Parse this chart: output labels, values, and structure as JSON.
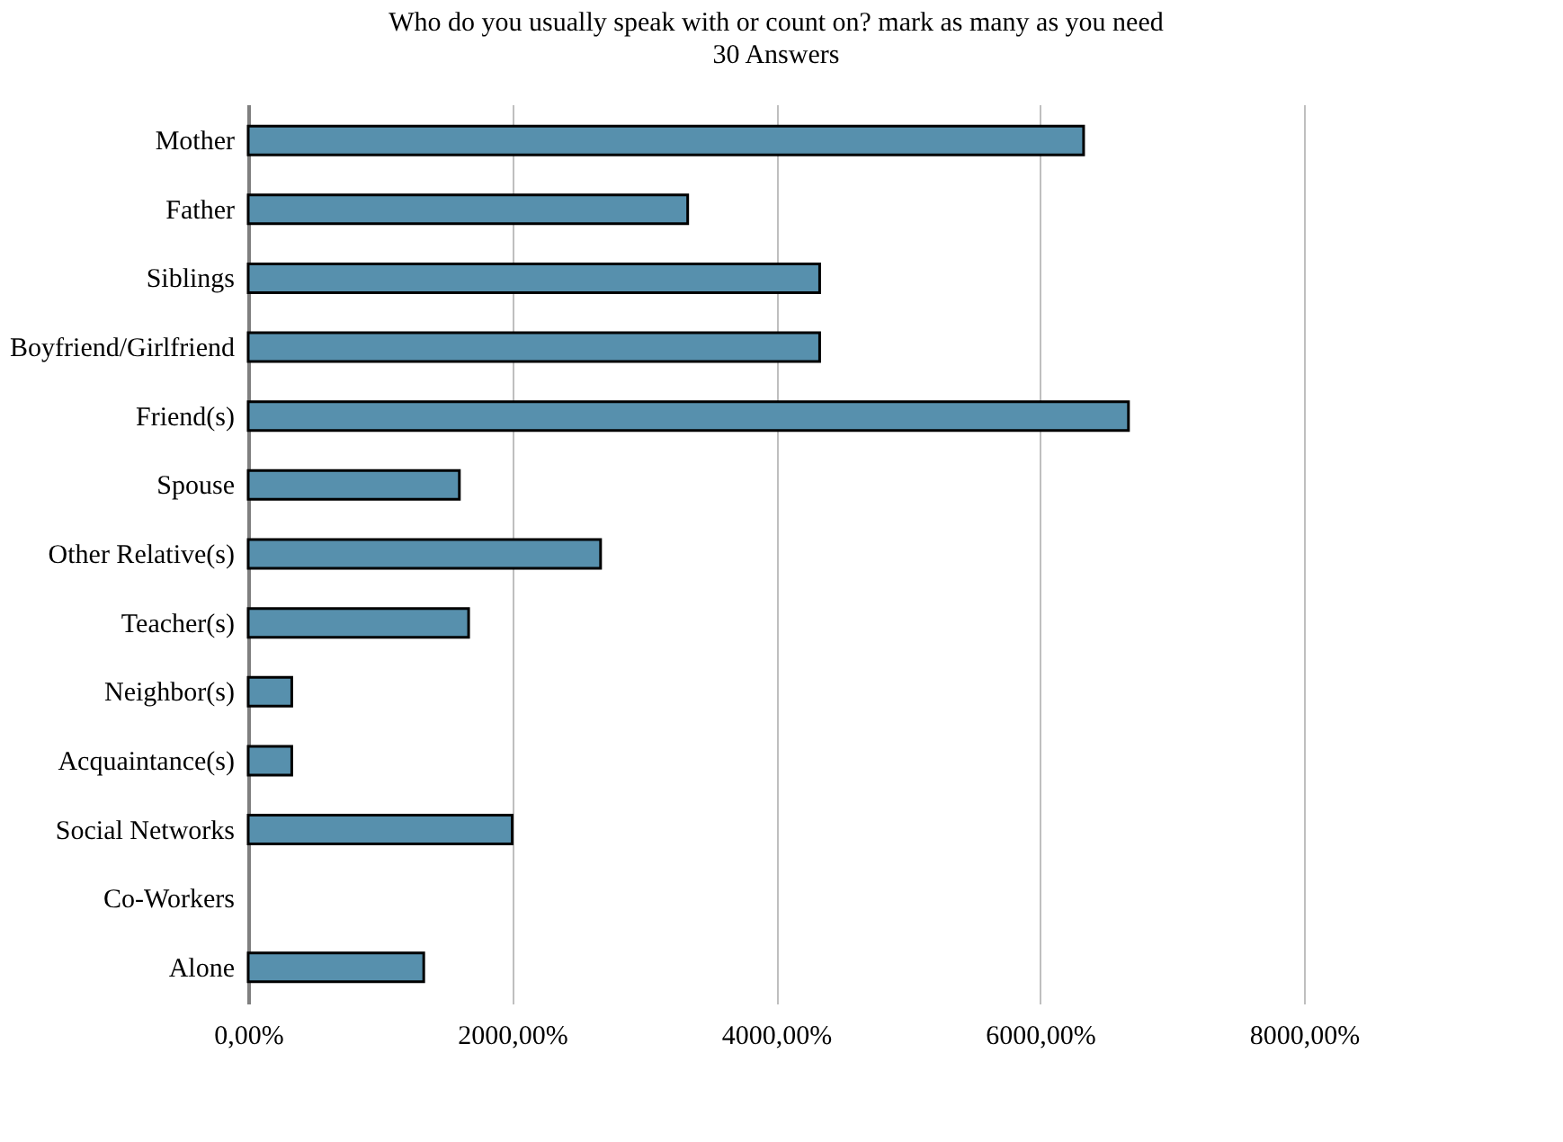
{
  "chart_data": {
    "type": "bar",
    "orientation": "horizontal",
    "title": "Who do you usually speak with or count on? mark as many as you need",
    "subtitle": "30 Answers",
    "categories": [
      "Mother",
      "Father",
      "Siblings",
      "Boyfriend/Girlfriend",
      "Friend(s)",
      "Spouse",
      "Other Relative(s)",
      "Teacher(s)",
      "Neighbor(s)",
      "Acquaintance(s)",
      "Social Networks",
      "Co-Workers",
      "Alone"
    ],
    "values": [
      6330,
      3330,
      4330,
      4330,
      6670,
      1600,
      2670,
      1670,
      330,
      330,
      2000,
      0,
      1330
    ],
    "color": "#5790ad",
    "xlim": [
      0,
      8000
    ],
    "xticks": [
      {
        "value": 0,
        "label": "0,00%"
      },
      {
        "value": 2000,
        "label": "2000,00%"
      },
      {
        "value": 4000,
        "label": "4000,00%"
      },
      {
        "value": 6000,
        "label": "6000,00%"
      },
      {
        "value": 8000,
        "label": "8000,00%"
      }
    ],
    "grid": "x"
  }
}
